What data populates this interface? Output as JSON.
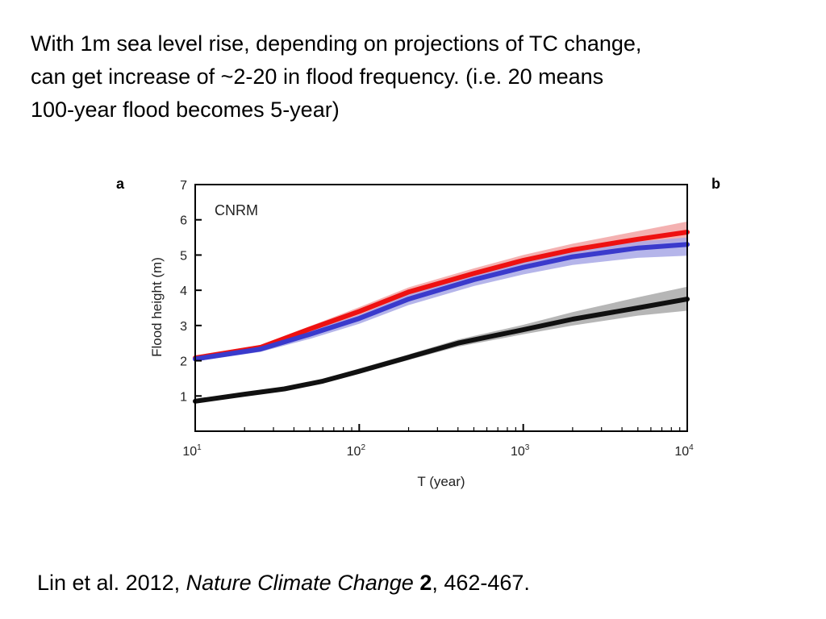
{
  "slide": {
    "headline_lines": [
      "With 1m sea level rise, depending on projections of TC change,",
      "can get increase of ~2-20 in flood frequency.  (i.e. 20 means",
      "100-year flood becomes 5-year)"
    ],
    "citation": {
      "authors_year": "Lin et al. 2012, ",
      "journal": "Nature Climate Change",
      "space": " ",
      "volume": "2",
      "pages": ", 462-467."
    }
  },
  "chart_data": {
    "type": "line",
    "panel_labels": [
      "a",
      "b"
    ],
    "model_label": "CNRM",
    "xlabel": "T (year)",
    "ylabel": "Flood height (m)",
    "xscale": "log",
    "xlim": [
      10,
      10000
    ],
    "ylim": [
      0,
      7
    ],
    "x_ticks": [
      {
        "value": 10,
        "base": "10",
        "exp": "1"
      },
      {
        "value": 100,
        "base": "10",
        "exp": "2"
      },
      {
        "value": 1000,
        "base": "10",
        "exp": "3"
      },
      {
        "value": 10000,
        "base": "10",
        "exp": "4"
      }
    ],
    "y_ticks": [
      1,
      2,
      3,
      4,
      5,
      6,
      7
    ],
    "grid": false,
    "legend": "none",
    "series": [
      {
        "color": "#ee1111",
        "band_color": "#f2a3a3",
        "x": [
          10,
          25,
          50,
          100,
          200,
          500,
          1000,
          2000,
          5000,
          10000
        ],
        "values": [
          2.08,
          2.38,
          2.9,
          3.4,
          3.95,
          4.48,
          4.85,
          5.15,
          5.45,
          5.65
        ],
        "lower": [
          2.0,
          2.3,
          2.8,
          3.25,
          3.8,
          4.32,
          4.7,
          5.0,
          5.28,
          5.4
        ],
        "upper": [
          2.15,
          2.45,
          2.98,
          3.52,
          4.08,
          4.62,
          5.0,
          5.32,
          5.68,
          5.95
        ]
      },
      {
        "color": "#3a3acc",
        "band_color": "#a8a8e6",
        "x": [
          10,
          25,
          50,
          100,
          200,
          500,
          1000,
          2000,
          5000,
          10000
        ],
        "values": [
          2.05,
          2.33,
          2.75,
          3.2,
          3.75,
          4.3,
          4.65,
          4.95,
          5.2,
          5.3
        ],
        "lower": [
          1.98,
          2.25,
          2.62,
          3.05,
          3.58,
          4.12,
          4.45,
          4.72,
          4.92,
          4.98
        ],
        "upper": [
          2.12,
          2.4,
          2.85,
          3.3,
          3.88,
          4.45,
          4.8,
          5.1,
          5.38,
          5.5
        ]
      },
      {
        "color": "#111111",
        "band_color": "#a9a9a9",
        "x": [
          10,
          20,
          35,
          60,
          100,
          200,
          400,
          1000,
          2000,
          5000,
          10000
        ],
        "values": [
          0.85,
          1.05,
          1.2,
          1.42,
          1.7,
          2.1,
          2.5,
          2.88,
          3.18,
          3.5,
          3.75
        ],
        "lower": [
          0.8,
          1.0,
          1.15,
          1.37,
          1.64,
          2.02,
          2.4,
          2.75,
          3.0,
          3.28,
          3.42
        ],
        "upper": [
          0.92,
          1.1,
          1.26,
          1.48,
          1.78,
          2.18,
          2.6,
          3.02,
          3.38,
          3.8,
          4.1
        ]
      }
    ]
  }
}
